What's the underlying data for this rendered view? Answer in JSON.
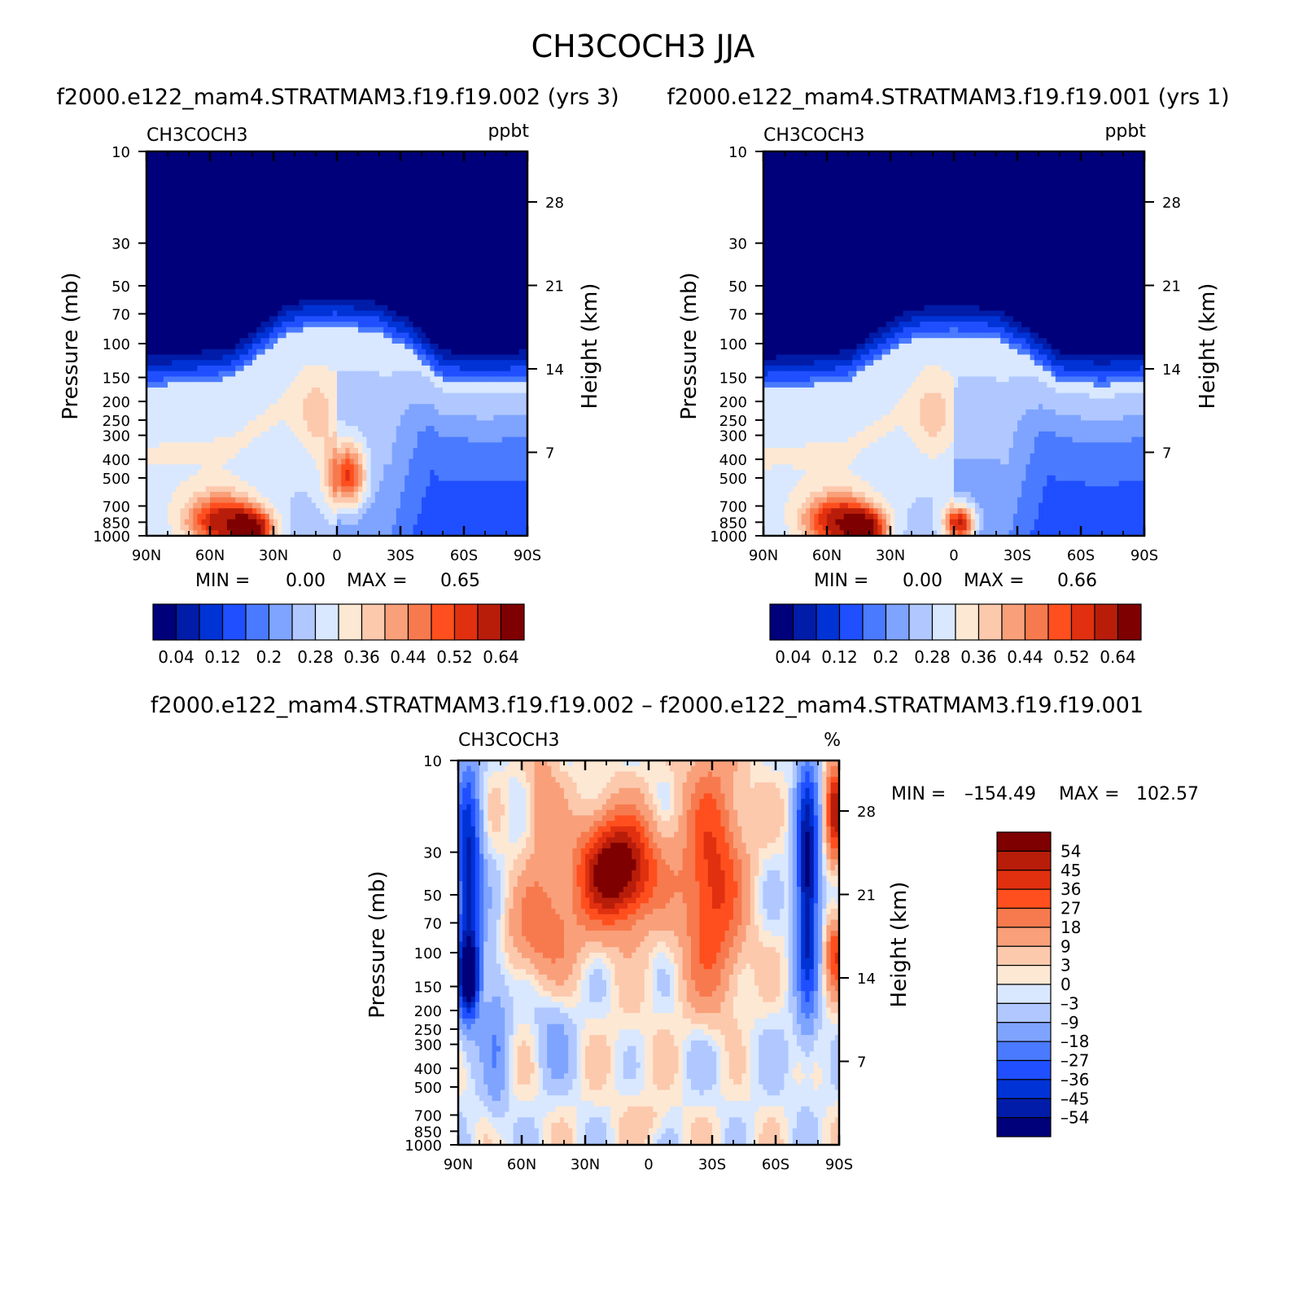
{
  "figure": {
    "title": "CH3COCH3 JJA"
  },
  "colors": {
    "scale": [
      "#00007a",
      "#001ca8",
      "#0033d6",
      "#1f4fff",
      "#4a7aff",
      "#7fa4ff",
      "#b0c8ff",
      "#d9e8ff",
      "#fde8d4",
      "#fcc9ad",
      "#f9a07a",
      "#f77a4e",
      "#ff4f1e",
      "#e03010",
      "#b81d0a",
      "#7f0000"
    ]
  },
  "chart_data": [
    {
      "type": "heatmap",
      "panel": "top-left",
      "title": "f2000.e122_mam4.STRATMAM3.f19.f19.002 (yrs 3)",
      "variable": "CH3COCH3",
      "units": "ppbt",
      "xlabel": "",
      "ylabel": "Pressure (mb)",
      "y2label": "Height (km)",
      "x_ticks": [
        "90N",
        "60N",
        "30N",
        "0",
        "30S",
        "60S",
        "90S"
      ],
      "x_range": [
        90,
        -90
      ],
      "y_ticks": [
        10,
        30,
        50,
        70,
        100,
        150,
        200,
        250,
        300,
        400,
        500,
        700,
        850,
        1000
      ],
      "y_range": [
        10,
        1000
      ],
      "y_scale": "log",
      "y2_ticks": [
        28,
        21,
        14,
        7
      ],
      "stats": {
        "min_label": "MIN =",
        "min": "0.00",
        "max_label": "MAX =",
        "max": "0.65"
      },
      "colorbar": {
        "orientation": "horizontal",
        "labels": [
          "0.04",
          "0.12",
          "0.2",
          "0.28",
          "0.36",
          "0.44",
          "0.52",
          "0.64"
        ]
      },
      "tropopause_km": [
        [
          -90,
          13.0
        ],
        [
          -70,
          12.7
        ],
        [
          -50,
          13.0
        ],
        [
          -35,
          15.5
        ],
        [
          -20,
          17.0
        ],
        [
          0,
          17.5
        ],
        [
          15,
          17.3
        ],
        [
          25,
          16.7
        ],
        [
          35,
          15.3
        ],
        [
          50,
          13.2
        ],
        [
          70,
          12.8
        ],
        [
          90,
          12.5
        ]
      ],
      "blobs": [
        {
          "lat": -5,
          "km": 5,
          "w": 9,
          "h": 2.8,
          "v": 0.6
        },
        {
          "lat": 40,
          "km": 0.5,
          "w": 10,
          "h": 1.6,
          "v": 0.64
        },
        {
          "lat": 55,
          "km": 1.2,
          "w": 16,
          "h": 2.2,
          "v": 0.6
        }
      ]
    },
    {
      "type": "heatmap",
      "panel": "top-right",
      "title": "f2000.e122_mam4.STRATMAM3.f19.f19.001 (yrs 1)",
      "variable": "CH3COCH3",
      "units": "ppbt",
      "xlabel": "",
      "ylabel": "Pressure (mb)",
      "y2label": "Height (km)",
      "x_ticks": [
        "90N",
        "60N",
        "30N",
        "0",
        "30S",
        "60S",
        "90S"
      ],
      "x_range": [
        90,
        -90
      ],
      "y_ticks": [
        10,
        30,
        50,
        70,
        100,
        150,
        200,
        250,
        300,
        400,
        500,
        700,
        850,
        1000
      ],
      "y_range": [
        10,
        1000
      ],
      "y_scale": "log",
      "y2_ticks": [
        28,
        21,
        14,
        7
      ],
      "stats": {
        "min_label": "MIN =",
        "min": "0.00",
        "max_label": "MAX =",
        "max": "0.66"
      },
      "colorbar": {
        "orientation": "horizontal",
        "labels": [
          "0.04",
          "0.12",
          "0.2",
          "0.28",
          "0.36",
          "0.44",
          "0.52",
          "0.64"
        ]
      },
      "tropopause_km": [
        [
          -90,
          12.9
        ],
        [
          -70,
          12.6
        ],
        [
          -50,
          12.9
        ],
        [
          -35,
          15.0
        ],
        [
          -20,
          16.5
        ],
        [
          0,
          16.8
        ],
        [
          15,
          16.6
        ],
        [
          25,
          16.1
        ],
        [
          35,
          14.8
        ],
        [
          50,
          13.0
        ],
        [
          70,
          12.6
        ],
        [
          90,
          12.4
        ]
      ],
      "blobs": [
        {
          "lat": -3,
          "km": 1.0,
          "w": 7,
          "h": 1.6,
          "v": 0.66
        },
        {
          "lat": 42,
          "km": 0.5,
          "w": 10,
          "h": 1.6,
          "v": 0.64
        },
        {
          "lat": 55,
          "km": 1.2,
          "w": 16,
          "h": 2.2,
          "v": 0.6
        }
      ]
    },
    {
      "type": "heatmap",
      "panel": "bottom",
      "title": "f2000.e122_mam4.STRATMAM3.f19.f19.002 – f2000.e122_mam4.STRATMAM3.f19.f19.001",
      "variable": "CH3COCH3",
      "units": "%",
      "xlabel": "",
      "ylabel": "Pressure (mb)",
      "y2label": "Height (km)",
      "x_ticks": [
        "90N",
        "60N",
        "30N",
        "0",
        "30S",
        "60S",
        "90S"
      ],
      "x_range": [
        90,
        -90
      ],
      "y_ticks": [
        10,
        30,
        50,
        70,
        100,
        150,
        200,
        250,
        300,
        400,
        500,
        700,
        850,
        1000
      ],
      "y_range": [
        10,
        1000
      ],
      "y_scale": "log",
      "y2_ticks": [
        28,
        21,
        14,
        7
      ],
      "stats": {
        "min_label": "MIN =",
        "min": "–154.49",
        "max_label": "MAX =",
        "max": "102.57"
      },
      "colorbar": {
        "orientation": "vertical",
        "labels": [
          "54",
          "45",
          "36",
          "27",
          "18",
          "9",
          "3",
          "0",
          "–3",
          "–9",
          "–18",
          "–27",
          "–36",
          "–45",
          "–54"
        ]
      },
      "features": [
        {
          "lat": 15,
          "km": 23,
          "w": 18,
          "h": 4.5,
          "v": 70
        },
        {
          "lat": -30,
          "km": 22,
          "w": 14,
          "h": 10,
          "v": 40
        },
        {
          "lat": 50,
          "km": 18,
          "w": 16,
          "h": 4,
          "v": 25
        },
        {
          "lat": 50,
          "km": 28,
          "w": 8,
          "h": 6,
          "v": 15
        },
        {
          "lat": -75,
          "km": 22,
          "w": 5,
          "h": 10,
          "v": -60
        },
        {
          "lat": -88,
          "km": 28,
          "w": 4,
          "h": 4,
          "v": 50
        },
        {
          "lat": -88,
          "km": 16,
          "w": 4,
          "h": 3,
          "v": 35
        },
        {
          "lat": 85,
          "km": 22,
          "w": 6,
          "h": 10,
          "v": -50
        },
        {
          "lat": 85,
          "km": 14,
          "w": 5,
          "h": 3,
          "v": -50
        },
        {
          "lat": 72,
          "km": 10,
          "w": 6,
          "h": 8,
          "v": -15
        },
        {
          "lat": 45,
          "km": 9,
          "w": 9,
          "h": 4,
          "v": -10
        },
        {
          "lat": 5,
          "km": 8,
          "w": 15,
          "h": 5,
          "v": 2
        },
        {
          "lat": -30,
          "km": 8,
          "w": 16,
          "h": 4,
          "v": -6
        },
        {
          "lat": -65,
          "km": 8,
          "w": 14,
          "h": 5,
          "v": -2
        },
        {
          "lat": 0,
          "km": 2,
          "w": 10,
          "h": 1.5,
          "v": 5
        }
      ]
    }
  ]
}
